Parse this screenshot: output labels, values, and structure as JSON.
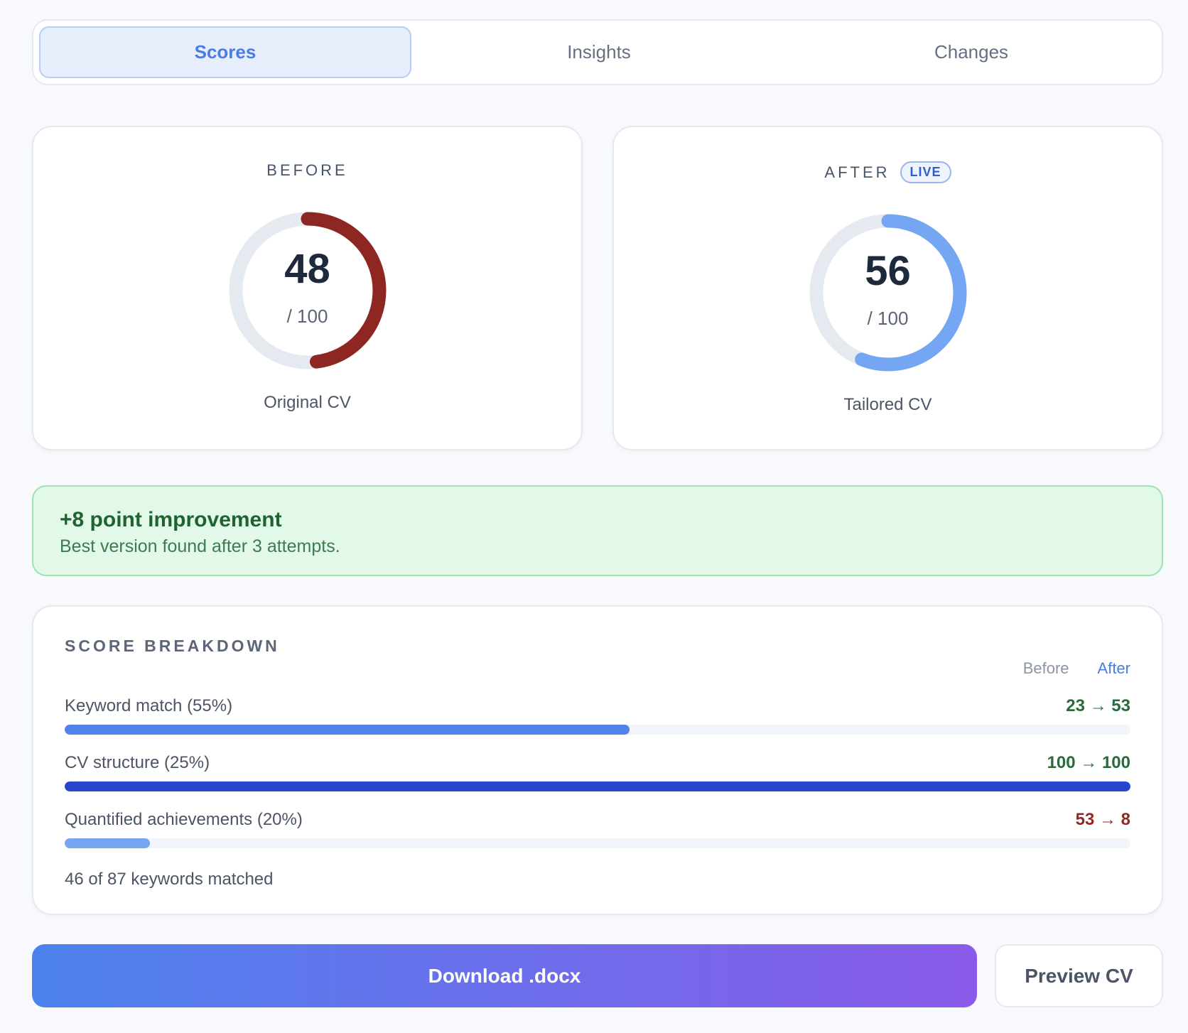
{
  "tabs": [
    {
      "label": "Scores",
      "active": true
    },
    {
      "label": "Insights",
      "active": false
    },
    {
      "label": "Changes",
      "active": false
    }
  ],
  "before": {
    "label": "BEFORE",
    "score": "48",
    "score_value": 48,
    "total": "/ 100",
    "caption": "Original CV",
    "ring_color": "#8e2622"
  },
  "after": {
    "label": "AFTER",
    "badge": "LIVE",
    "score": "56",
    "score_value": 56,
    "total": "/ 100",
    "caption": "Tailored CV",
    "ring_color": "#74a6f3"
  },
  "improvement": {
    "title": "+8 point improvement",
    "subtitle": "Best version found after 3 attempts."
  },
  "breakdown": {
    "title": "SCORE BREAKDOWN",
    "legend_before": "Before",
    "legend_after": "After",
    "metrics": [
      {
        "label": "Keyword match (55%)",
        "change": "23 → 53",
        "trend": "up",
        "after_value": 53,
        "bar_color": "#4f82ea"
      },
      {
        "label": "CV structure (25%)",
        "change": "100 → 100",
        "trend": "up",
        "after_value": 100,
        "bar_color": "#2746cc"
      },
      {
        "label": "Quantified achievements (20%)",
        "change": "53 → 8",
        "trend": "down",
        "after_value": 8,
        "bar_color": "#74a6f3"
      }
    ],
    "keywords_matched": "46 of 87 keywords matched"
  },
  "actions": {
    "download_label": "Download .docx",
    "preview_label": "Preview CV"
  },
  "colors": {
    "accent": "#4a7ce6",
    "ring_track": "#e5e9f0",
    "success_bg": "#e2f8e8",
    "success_text": "#1f6333"
  }
}
